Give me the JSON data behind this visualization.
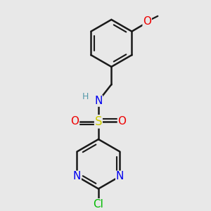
{
  "background_color": "#e8e8e8",
  "bond_color": "#1a1a1a",
  "bond_width": 1.8,
  "atom_colors": {
    "C": "#1a1a1a",
    "N": "#0000ee",
    "O": "#ee0000",
    "S": "#cccc00",
    "Cl": "#00bb00",
    "H": "#5599aa"
  },
  "font_size": 10,
  "fig_size": [
    3.0,
    3.0
  ],
  "dpi": 100,
  "xlim": [
    -1.2,
    1.2
  ],
  "ylim": [
    -1.6,
    1.8
  ]
}
